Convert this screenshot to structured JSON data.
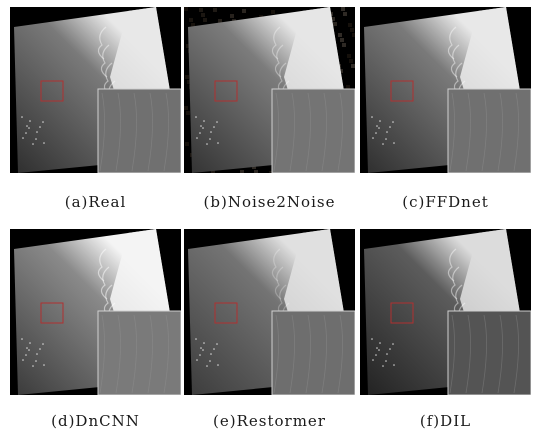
{
  "figure": {
    "panels": [
      {
        "id": "a",
        "caption": "(a)Real",
        "variant": "real"
      },
      {
        "id": "b",
        "caption": "(b)Noise2Noise",
        "variant": "noisy"
      },
      {
        "id": "c",
        "caption": "(c)FFDnet",
        "variant": "real"
      },
      {
        "id": "d",
        "caption": "(d)DnCNN",
        "variant": "bright"
      },
      {
        "id": "e",
        "caption": "(e)Restormer",
        "variant": "smooth"
      },
      {
        "id": "f",
        "caption": "(f)DIL",
        "variant": "dark"
      }
    ],
    "colors": {
      "background": "#000000",
      "roi_box": "#b03030",
      "zoom_border": "#d0d0d0"
    }
  }
}
